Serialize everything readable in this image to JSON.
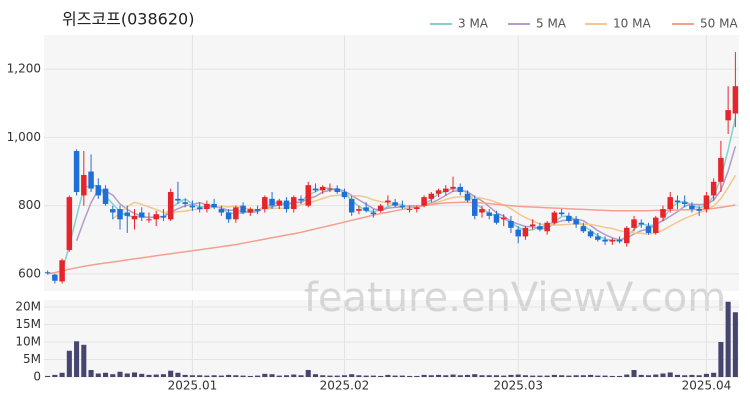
{
  "chart_data": [
    {
      "type": "candlestick",
      "title": "위즈코프(038620)",
      "watermark": "feature.enViewV.com",
      "up_color": "#e8242b",
      "down_color": "#1f6fd6",
      "legend": "top-right",
      "grid": true,
      "ylim": [
        550,
        1300
      ],
      "yticks": [
        600,
        800,
        {
          "value": 1000,
          "label": "1,000"
        },
        {
          "value": 1200,
          "label": "1,200"
        }
      ],
      "open": [
        605,
        598,
        578,
        670,
        960,
        830,
        900,
        860,
        850,
        790,
        790,
        780,
        760,
        780,
        760,
        760,
        770,
        760,
        820,
        810,
        800,
        795,
        790,
        805,
        790,
        780,
        760,
        800,
        780,
        790,
        790,
        820,
        800,
        815,
        790,
        820,
        800,
        850,
        845,
        850,
        850,
        840,
        820,
        785,
        795,
        780,
        785,
        810,
        810,
        800,
        790,
        790,
        800,
        820,
        835,
        840,
        850,
        855,
        835,
        820,
        780,
        780,
        775,
        760,
        755,
        730,
        710,
        740,
        740,
        725,
        750,
        780,
        770,
        760,
        740,
        725,
        710,
        700,
        695,
        700,
        690,
        735,
        750,
        740,
        720,
        765,
        790,
        815,
        810,
        800,
        790,
        790,
        830,
        870,
        1050,
        1070
      ],
      "high": [
        610,
        600,
        645,
        830,
        965,
        960,
        950,
        880,
        860,
        800,
        800,
        800,
        790,
        795,
        780,
        785,
        790,
        850,
        870,
        820,
        815,
        810,
        815,
        820,
        800,
        790,
        800,
        810,
        795,
        800,
        830,
        840,
        820,
        825,
        830,
        830,
        870,
        865,
        860,
        865,
        860,
        850,
        830,
        800,
        810,
        790,
        805,
        830,
        820,
        815,
        800,
        800,
        830,
        840,
        850,
        860,
        885,
        865,
        845,
        830,
        800,
        790,
        785,
        775,
        770,
        740,
        740,
        760,
        750,
        755,
        785,
        790,
        780,
        770,
        750,
        730,
        720,
        710,
        705,
        710,
        740,
        770,
        760,
        750,
        770,
        800,
        840,
        830,
        830,
        810,
        800,
        840,
        880,
        990,
        1150,
        1250
      ],
      "low": [
        598,
        572,
        572,
        665,
        830,
        800,
        840,
        820,
        800,
        760,
        730,
        720,
        730,
        755,
        750,
        740,
        755,
        755,
        805,
        795,
        785,
        780,
        780,
        790,
        770,
        750,
        750,
        775,
        770,
        775,
        780,
        790,
        790,
        780,
        780,
        805,
        795,
        840,
        835,
        840,
        835,
        820,
        770,
        775,
        780,
        765,
        780,
        800,
        795,
        790,
        780,
        780,
        795,
        810,
        825,
        830,
        840,
        830,
        810,
        760,
        765,
        760,
        745,
        740,
        720,
        690,
        700,
        730,
        725,
        715,
        745,
        770,
        750,
        735,
        720,
        705,
        695,
        685,
        685,
        690,
        680,
        725,
        735,
        715,
        715,
        755,
        780,
        790,
        795,
        780,
        770,
        780,
        815,
        840,
        1010,
        1030
      ],
      "close": [
        602,
        580,
        640,
        825,
        840,
        890,
        850,
        830,
        805,
        780,
        760,
        770,
        770,
        765,
        760,
        775,
        765,
        840,
        815,
        805,
        795,
        790,
        805,
        795,
        780,
        760,
        795,
        780,
        790,
        785,
        825,
        800,
        815,
        790,
        825,
        815,
        860,
        845,
        855,
        850,
        840,
        825,
        780,
        790,
        785,
        775,
        800,
        815,
        800,
        795,
        790,
        795,
        825,
        835,
        845,
        850,
        855,
        840,
        815,
        770,
        790,
        770,
        750,
        765,
        735,
        710,
        735,
        745,
        730,
        750,
        780,
        775,
        755,
        745,
        725,
        710,
        700,
        695,
        700,
        695,
        735,
        760,
        745,
        720,
        765,
        790,
        825,
        810,
        805,
        790,
        785,
        830,
        870,
        940,
        1080,
        1150
      ],
      "series": [
        {
          "name": "3 MA",
          "color": "#7fd3cf",
          "values": [
            null,
            null,
            607,
            682,
            768,
            852,
            860,
            857,
            828,
            805,
            782,
            770,
            767,
            768,
            765,
            767,
            767,
            793,
            807,
            820,
            805,
            797,
            797,
            797,
            793,
            778,
            778,
            778,
            788,
            785,
            800,
            803,
            813,
            802,
            810,
            810,
            833,
            840,
            853,
            850,
            848,
            838,
            815,
            798,
            785,
            783,
            787,
            797,
            805,
            803,
            795,
            793,
            803,
            818,
            835,
            843,
            850,
            848,
            837,
            808,
            792,
            777,
            770,
            762,
            750,
            737,
            727,
            730,
            737,
            742,
            753,
            768,
            770,
            758,
            742,
            727,
            712,
            702,
            698,
            697,
            710,
            730,
            747,
            742,
            743,
            758,
            793,
            808,
            813,
            802,
            793,
            802,
            828,
            880,
            963,
            1057
          ]
        },
        {
          "name": "5 MA",
          "color": "#b39cc8",
          "values": [
            null,
            null,
            null,
            null,
            697,
            755,
            809,
            847,
            843,
            831,
            805,
            789,
            777,
            769,
            765,
            768,
            767,
            781,
            791,
            800,
            804,
            809,
            802,
            798,
            793,
            786,
            787,
            782,
            781,
            782,
            795,
            796,
            803,
            803,
            811,
            809,
            821,
            827,
            840,
            845,
            850,
            843,
            830,
            817,
            804,
            791,
            786,
            793,
            795,
            797,
            800,
            799,
            801,
            808,
            818,
            830,
            842,
            845,
            841,
            826,
            814,
            797,
            779,
            769,
            754,
            746,
            739,
            738,
            733,
            734,
            748,
            756,
            758,
            761,
            756,
            742,
            727,
            715,
            706,
            700,
            705,
            717,
            727,
            731,
            745,
            756,
            769,
            782,
            799,
            804,
            803,
            804,
            816,
            845,
            901,
            974
          ]
        },
        {
          "name": "10 MA",
          "color": "#f3c88c",
          "values": [
            null,
            null,
            null,
            null,
            null,
            null,
            null,
            null,
            null,
            762,
            778,
            797,
            810,
            804,
            796,
            789,
            780,
            781,
            782,
            784,
            788,
            790,
            793,
            796,
            798,
            796,
            799,
            793,
            790,
            788,
            791,
            792,
            793,
            792,
            797,
            802,
            808,
            814,
            821,
            828,
            830,
            832,
            829,
            829,
            825,
            817,
            812,
            809,
            804,
            799,
            794,
            796,
            800,
            805,
            811,
            818,
            824,
            826,
            827,
            825,
            822,
            817,
            810,
            802,
            791,
            777,
            765,
            755,
            746,
            744,
            743,
            744,
            745,
            747,
            745,
            745,
            741,
            736,
            733,
            727,
            722,
            720,
            719,
            716,
            720,
            728,
            740,
            752,
            762,
            771,
            780,
            787,
            799,
            821,
            853,
            889
          ]
        },
        {
          "name": "50 MA",
          "color": "#f4a08e",
          "values": [
            600,
            604,
            609,
            614,
            618,
            622,
            626,
            629,
            632,
            635,
            638,
            641,
            644,
            647,
            650,
            653,
            656,
            659,
            662,
            665,
            668,
            671,
            674,
            677,
            680,
            683,
            686,
            690,
            694,
            698,
            702,
            706,
            710,
            714,
            718,
            722,
            727,
            732,
            737,
            742,
            747,
            752,
            757,
            762,
            767,
            772,
            777,
            781,
            785,
            789,
            793,
            797,
            800,
            803,
            806,
            808,
            809,
            810,
            810,
            809,
            808,
            806,
            804,
            802,
            800,
            798,
            797,
            796,
            795,
            794,
            793,
            792,
            791,
            790,
            789,
            788,
            787,
            786,
            785,
            785,
            785,
            785,
            785,
            785,
            786,
            786,
            787,
            787,
            788,
            788,
            789,
            790,
            792,
            795,
            798,
            802
          ]
        }
      ]
    },
    {
      "type": "bar",
      "color": "#45456f",
      "grid": true,
      "ylim": [
        0,
        22000000
      ],
      "yticks": [
        0,
        {
          "value": 5000000,
          "label": "5M"
        },
        {
          "value": 10000000,
          "label": "10M"
        },
        {
          "value": 15000000,
          "label": "15M"
        },
        {
          "value": 20000000,
          "label": "20M"
        }
      ],
      "categories": [
        null,
        null,
        null,
        null,
        null,
        null,
        null,
        null,
        null,
        null,
        null,
        null,
        null,
        null,
        null,
        null,
        null,
        null,
        null,
        null,
        "2025.01",
        null,
        null,
        null,
        null,
        null,
        null,
        null,
        null,
        null,
        null,
        null,
        null,
        null,
        null,
        null,
        null,
        null,
        null,
        null,
        null,
        "2025.02",
        null,
        null,
        null,
        null,
        null,
        null,
        null,
        null,
        null,
        null,
        null,
        null,
        null,
        null,
        null,
        null,
        null,
        null,
        null,
        null,
        null,
        null,
        null,
        "2025.03",
        null,
        null,
        null,
        null,
        null,
        null,
        null,
        null,
        null,
        null,
        null,
        null,
        null,
        null,
        null,
        null,
        null,
        null,
        null,
        null,
        null,
        null,
        null,
        null,
        null,
        "2025.04",
        null,
        null,
        null,
        null
      ],
      "values": [
        300000,
        600000,
        1200000,
        7500000,
        10200000,
        9200000,
        2000000,
        1000000,
        1200000,
        800000,
        1500000,
        1000000,
        1300000,
        900000,
        600000,
        700000,
        800000,
        1800000,
        1200000,
        600000,
        500000,
        500000,
        400000,
        500000,
        400000,
        600000,
        500000,
        400000,
        300000,
        400000,
        900000,
        800000,
        400000,
        500000,
        700000,
        500000,
        2000000,
        800000,
        500000,
        400000,
        400000,
        500000,
        800000,
        500000,
        400000,
        400000,
        300000,
        600000,
        400000,
        400000,
        300000,
        300000,
        600000,
        500000,
        600000,
        500000,
        700000,
        500000,
        600000,
        800000,
        500000,
        500000,
        500000,
        400000,
        600000,
        700000,
        500000,
        400000,
        400000,
        400000,
        600000,
        500000,
        400000,
        500000,
        500000,
        600000,
        400000,
        400000,
        300000,
        300000,
        700000,
        2000000,
        600000,
        500000,
        700000,
        1000000,
        1300000,
        600000,
        500000,
        600000,
        500000,
        900000,
        1200000,
        10000000,
        21500000,
        18500000
      ]
    }
  ]
}
